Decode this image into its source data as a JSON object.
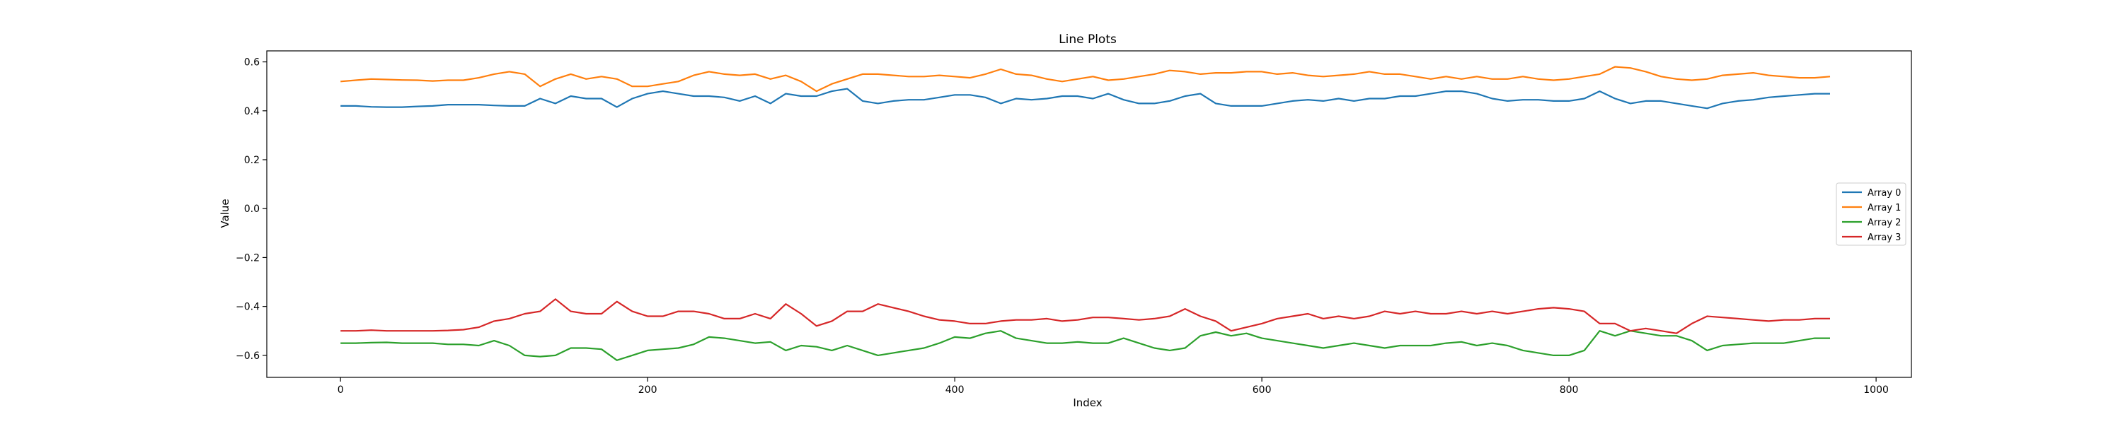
{
  "chart_data": {
    "type": "line",
    "title": "Line Plots",
    "xlabel": "Index",
    "ylabel": "Value",
    "xlim": [
      -48,
      1023
    ],
    "ylim": [
      -0.69,
      0.645
    ],
    "xticks": [
      0,
      200,
      400,
      600,
      800,
      1000
    ],
    "yticks": [
      -0.6,
      -0.4,
      -0.2,
      0.0,
      0.2,
      0.4,
      0.6
    ],
    "xtick_labels": [
      "0",
      "200",
      "400",
      "600",
      "800",
      "1000"
    ],
    "ytick_labels": [
      "−0.6",
      "−0.4",
      "−0.2",
      "0.0",
      "0.2",
      "0.4",
      "0.6"
    ],
    "grid": false,
    "legend_position": "center-right",
    "x_points": [
      0,
      10,
      20,
      30,
      40,
      50,
      60,
      70,
      80,
      90,
      100,
      110,
      120,
      130,
      140,
      150,
      160,
      170,
      180,
      190,
      200,
      210,
      220,
      230,
      240,
      250,
      260,
      270,
      280,
      290,
      300,
      310,
      320,
      330,
      340,
      350,
      360,
      370,
      380,
      390,
      400,
      410,
      420,
      430,
      440,
      450,
      460,
      470,
      480,
      490,
      500,
      510,
      520,
      530,
      540,
      550,
      560,
      570,
      580,
      590,
      600,
      610,
      620,
      630,
      640,
      650,
      660,
      670,
      680,
      690,
      700,
      710,
      720,
      730,
      740,
      750,
      760,
      770,
      780,
      790,
      800,
      810,
      820,
      830,
      840,
      850,
      860,
      870,
      880,
      890,
      900,
      910,
      920,
      930,
      940,
      950,
      960,
      970
    ],
    "series": [
      {
        "name": "Array 0",
        "color": "#1f77b4",
        "values": [
          0.42,
          0.42,
          0.416,
          0.415,
          0.415,
          0.418,
          0.42,
          0.425,
          0.425,
          0.425,
          0.422,
          0.42,
          0.42,
          0.45,
          0.43,
          0.46,
          0.45,
          0.45,
          0.415,
          0.45,
          0.47,
          0.48,
          0.47,
          0.46,
          0.46,
          0.455,
          0.44,
          0.46,
          0.43,
          0.47,
          0.46,
          0.46,
          0.48,
          0.49,
          0.44,
          0.43,
          0.44,
          0.445,
          0.445,
          0.455,
          0.465,
          0.465,
          0.455,
          0.43,
          0.45,
          0.445,
          0.45,
          0.46,
          0.46,
          0.45,
          0.47,
          0.445,
          0.43,
          0.43,
          0.44,
          0.46,
          0.47,
          0.43,
          0.42,
          0.42,
          0.42,
          0.43,
          0.44,
          0.445,
          0.44,
          0.45,
          0.44,
          0.45,
          0.45,
          0.46,
          0.46,
          0.47,
          0.48,
          0.48,
          0.47,
          0.45,
          0.44,
          0.445,
          0.445,
          0.44,
          0.44,
          0.45,
          0.48,
          0.45,
          0.43,
          0.44,
          0.44,
          0.43,
          0.42,
          0.41,
          0.43,
          0.44,
          0.445,
          0.455,
          0.46,
          0.465,
          0.47,
          0.47
        ]
      },
      {
        "name": "Array 1",
        "color": "#ff7f0e",
        "values": [
          0.52,
          0.525,
          0.53,
          0.528,
          0.526,
          0.525,
          0.522,
          0.525,
          0.525,
          0.535,
          0.55,
          0.56,
          0.55,
          0.5,
          0.53,
          0.55,
          0.53,
          0.54,
          0.53,
          0.5,
          0.5,
          0.51,
          0.52,
          0.545,
          0.56,
          0.55,
          0.545,
          0.55,
          0.53,
          0.545,
          0.52,
          0.48,
          0.51,
          0.53,
          0.55,
          0.55,
          0.545,
          0.54,
          0.54,
          0.545,
          0.54,
          0.535,
          0.55,
          0.57,
          0.55,
          0.545,
          0.53,
          0.52,
          0.53,
          0.54,
          0.525,
          0.53,
          0.54,
          0.55,
          0.565,
          0.56,
          0.55,
          0.555,
          0.555,
          0.56,
          0.56,
          0.55,
          0.555,
          0.545,
          0.54,
          0.545,
          0.55,
          0.56,
          0.55,
          0.55,
          0.54,
          0.53,
          0.54,
          0.53,
          0.54,
          0.53,
          0.53,
          0.54,
          0.53,
          0.525,
          0.53,
          0.54,
          0.55,
          0.58,
          0.575,
          0.56,
          0.54,
          0.53,
          0.525,
          0.53,
          0.545,
          0.55,
          0.555,
          0.545,
          0.54,
          0.535,
          0.535,
          0.54
        ]
      },
      {
        "name": "Array 2",
        "color": "#2ca02c",
        "values": [
          -0.55,
          -0.55,
          -0.548,
          -0.547,
          -0.55,
          -0.55,
          -0.55,
          -0.555,
          -0.555,
          -0.56,
          -0.54,
          -0.56,
          -0.6,
          -0.605,
          -0.6,
          -0.57,
          -0.57,
          -0.575,
          -0.62,
          -0.6,
          -0.58,
          -0.575,
          -0.57,
          -0.555,
          -0.525,
          -0.53,
          -0.54,
          -0.55,
          -0.545,
          -0.58,
          -0.56,
          -0.565,
          -0.58,
          -0.56,
          -0.58,
          -0.6,
          -0.59,
          -0.58,
          -0.57,
          -0.55,
          -0.525,
          -0.53,
          -0.51,
          -0.5,
          -0.53,
          -0.54,
          -0.55,
          -0.55,
          -0.545,
          -0.55,
          -0.55,
          -0.53,
          -0.55,
          -0.57,
          -0.58,
          -0.57,
          -0.52,
          -0.505,
          -0.52,
          -0.51,
          -0.53,
          -0.54,
          -0.55,
          -0.56,
          -0.57,
          -0.56,
          -0.55,
          -0.56,
          -0.57,
          -0.56,
          -0.56,
          -0.56,
          -0.55,
          -0.545,
          -0.56,
          -0.55,
          -0.56,
          -0.58,
          -0.59,
          -0.6,
          -0.6,
          -0.58,
          -0.5,
          -0.52,
          -0.5,
          -0.51,
          -0.52,
          -0.52,
          -0.54,
          -0.58,
          -0.56,
          -0.555,
          -0.55,
          -0.55,
          -0.55,
          -0.54,
          -0.53,
          -0.53
        ]
      },
      {
        "name": "Array 3",
        "color": "#d62728",
        "values": [
          -0.5,
          -0.5,
          -0.497,
          -0.5,
          -0.5,
          -0.5,
          -0.5,
          -0.498,
          -0.495,
          -0.485,
          -0.46,
          -0.45,
          -0.43,
          -0.42,
          -0.37,
          -0.42,
          -0.43,
          -0.43,
          -0.38,
          -0.42,
          -0.44,
          -0.44,
          -0.42,
          -0.42,
          -0.43,
          -0.45,
          -0.45,
          -0.43,
          -0.45,
          -0.39,
          -0.43,
          -0.48,
          -0.46,
          -0.42,
          -0.42,
          -0.39,
          -0.405,
          -0.42,
          -0.44,
          -0.455,
          -0.46,
          -0.47,
          -0.47,
          -0.46,
          -0.455,
          -0.455,
          -0.45,
          -0.46,
          -0.455,
          -0.445,
          -0.445,
          -0.45,
          -0.455,
          -0.45,
          -0.44,
          -0.41,
          -0.44,
          -0.46,
          -0.5,
          -0.485,
          -0.47,
          -0.45,
          -0.44,
          -0.43,
          -0.45,
          -0.44,
          -0.45,
          -0.44,
          -0.42,
          -0.43,
          -0.42,
          -0.43,
          -0.43,
          -0.42,
          -0.43,
          -0.42,
          -0.43,
          -0.42,
          -0.41,
          -0.405,
          -0.41,
          -0.42,
          -0.47,
          -0.47,
          -0.5,
          -0.49,
          -0.5,
          -0.51,
          -0.47,
          -0.44,
          -0.445,
          -0.45,
          -0.455,
          -0.46,
          -0.455,
          -0.455,
          -0.45,
          -0.45
        ]
      }
    ]
  }
}
